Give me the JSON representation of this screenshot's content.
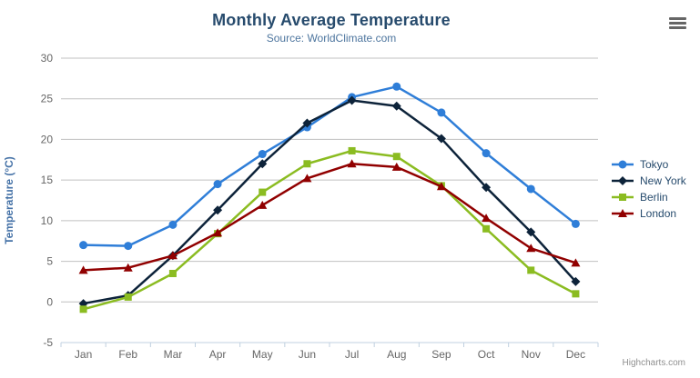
{
  "chart": {
    "credits": "Highcharts.com",
    "menu_icon": "hamburger-menu-icon"
  },
  "colors": {
    "title": "#274b6d",
    "subtitle": "#4d759e",
    "axis_title": "#4572a7",
    "tick_label": "#666666",
    "gridline": "#c0c0c0",
    "axis_line": "#c0d0e0",
    "legend_text": "#274b6d",
    "credits": "#909090",
    "menu_icon": "#666666"
  },
  "chart_data": {
    "type": "line",
    "title": "Monthly Average Temperature",
    "subtitle": "Source: WorldClimate.com",
    "xlabel": "",
    "ylabel": "Temperature (°C)",
    "ylim": [
      -5,
      30
    ],
    "yticks": [
      -5,
      0,
      5,
      10,
      15,
      20,
      25,
      30
    ],
    "grid": true,
    "legend_position": "right",
    "categories": [
      "Jan",
      "Feb",
      "Mar",
      "Apr",
      "May",
      "Jun",
      "Jul",
      "Aug",
      "Sep",
      "Oct",
      "Nov",
      "Dec"
    ],
    "series": [
      {
        "name": "Tokyo",
        "color": "#2f7ed8",
        "marker": "circle",
        "values": [
          7.0,
          6.9,
          9.5,
          14.5,
          18.2,
          21.5,
          25.2,
          26.5,
          23.3,
          18.3,
          13.9,
          9.6
        ]
      },
      {
        "name": "New York",
        "color": "#0d233a",
        "marker": "diamond",
        "values": [
          -0.2,
          0.8,
          5.7,
          11.3,
          17.0,
          22.0,
          24.8,
          24.1,
          20.1,
          14.1,
          8.6,
          2.5
        ]
      },
      {
        "name": "Berlin",
        "color": "#8bbc21",
        "marker": "square",
        "values": [
          -0.9,
          0.6,
          3.5,
          8.4,
          13.5,
          17.0,
          18.6,
          17.9,
          14.3,
          9.0,
          3.9,
          1.0
        ]
      },
      {
        "name": "London",
        "color": "#910000",
        "marker": "triangle",
        "values": [
          3.9,
          4.2,
          5.7,
          8.5,
          11.9,
          15.2,
          17.0,
          16.6,
          14.2,
          10.3,
          6.6,
          4.8
        ]
      }
    ]
  }
}
